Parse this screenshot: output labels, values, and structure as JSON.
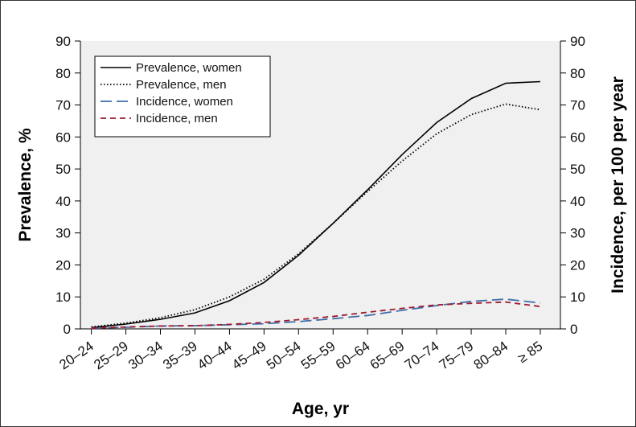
{
  "chart_data": {
    "type": "line",
    "categories": [
      "20–24",
      "25–29",
      "30–34",
      "35–39",
      "40–44",
      "45–49",
      "50–54",
      "55–59",
      "60–64",
      "65–69",
      "70–74",
      "75–79",
      "80–84",
      "≥ 85"
    ],
    "xlabel": "Age, yr",
    "ylabel_left": "Prevalence, %",
    "ylabel_right": "Incidence, per 100 per year",
    "ylim_left": [
      0,
      90
    ],
    "ylim_right": [
      0,
      90
    ],
    "yticks": [
      0,
      10,
      20,
      30,
      40,
      50,
      60,
      70,
      80,
      90
    ],
    "legend_position": "top-left",
    "plot_background": "#f0f0f0",
    "series": [
      {
        "name": "Prevalence, women",
        "axis": "left",
        "color": "#000000",
        "dash": "solid",
        "values": [
          0.4,
          1.5,
          3.0,
          5.0,
          8.8,
          14.5,
          23.0,
          33.0,
          43.5,
          54.5,
          64.5,
          72.0,
          76.8,
          77.3
        ]
      },
      {
        "name": "Prevalence, men",
        "axis": "left",
        "color": "#000000",
        "dash": "dotted",
        "values": [
          0.6,
          1.8,
          3.5,
          6.0,
          10.0,
          15.5,
          23.5,
          33.0,
          43.0,
          52.5,
          61.0,
          67.0,
          70.3,
          68.5
        ]
      },
      {
        "name": "Incidence, women",
        "axis": "right",
        "color": "#3f6fa8",
        "dash": "longdash",
        "values": [
          0.2,
          0.5,
          0.9,
          1.0,
          1.3,
          1.6,
          2.3,
          3.2,
          4.2,
          5.8,
          7.3,
          8.6,
          9.3,
          8.1
        ]
      },
      {
        "name": "Incidence, men",
        "axis": "right",
        "color": "#9b1b30",
        "dash": "dash",
        "values": [
          0.2,
          0.6,
          0.9,
          1.0,
          1.4,
          2.0,
          2.9,
          3.9,
          5.2,
          6.4,
          7.5,
          8.0,
          8.4,
          7.0
        ]
      }
    ]
  }
}
